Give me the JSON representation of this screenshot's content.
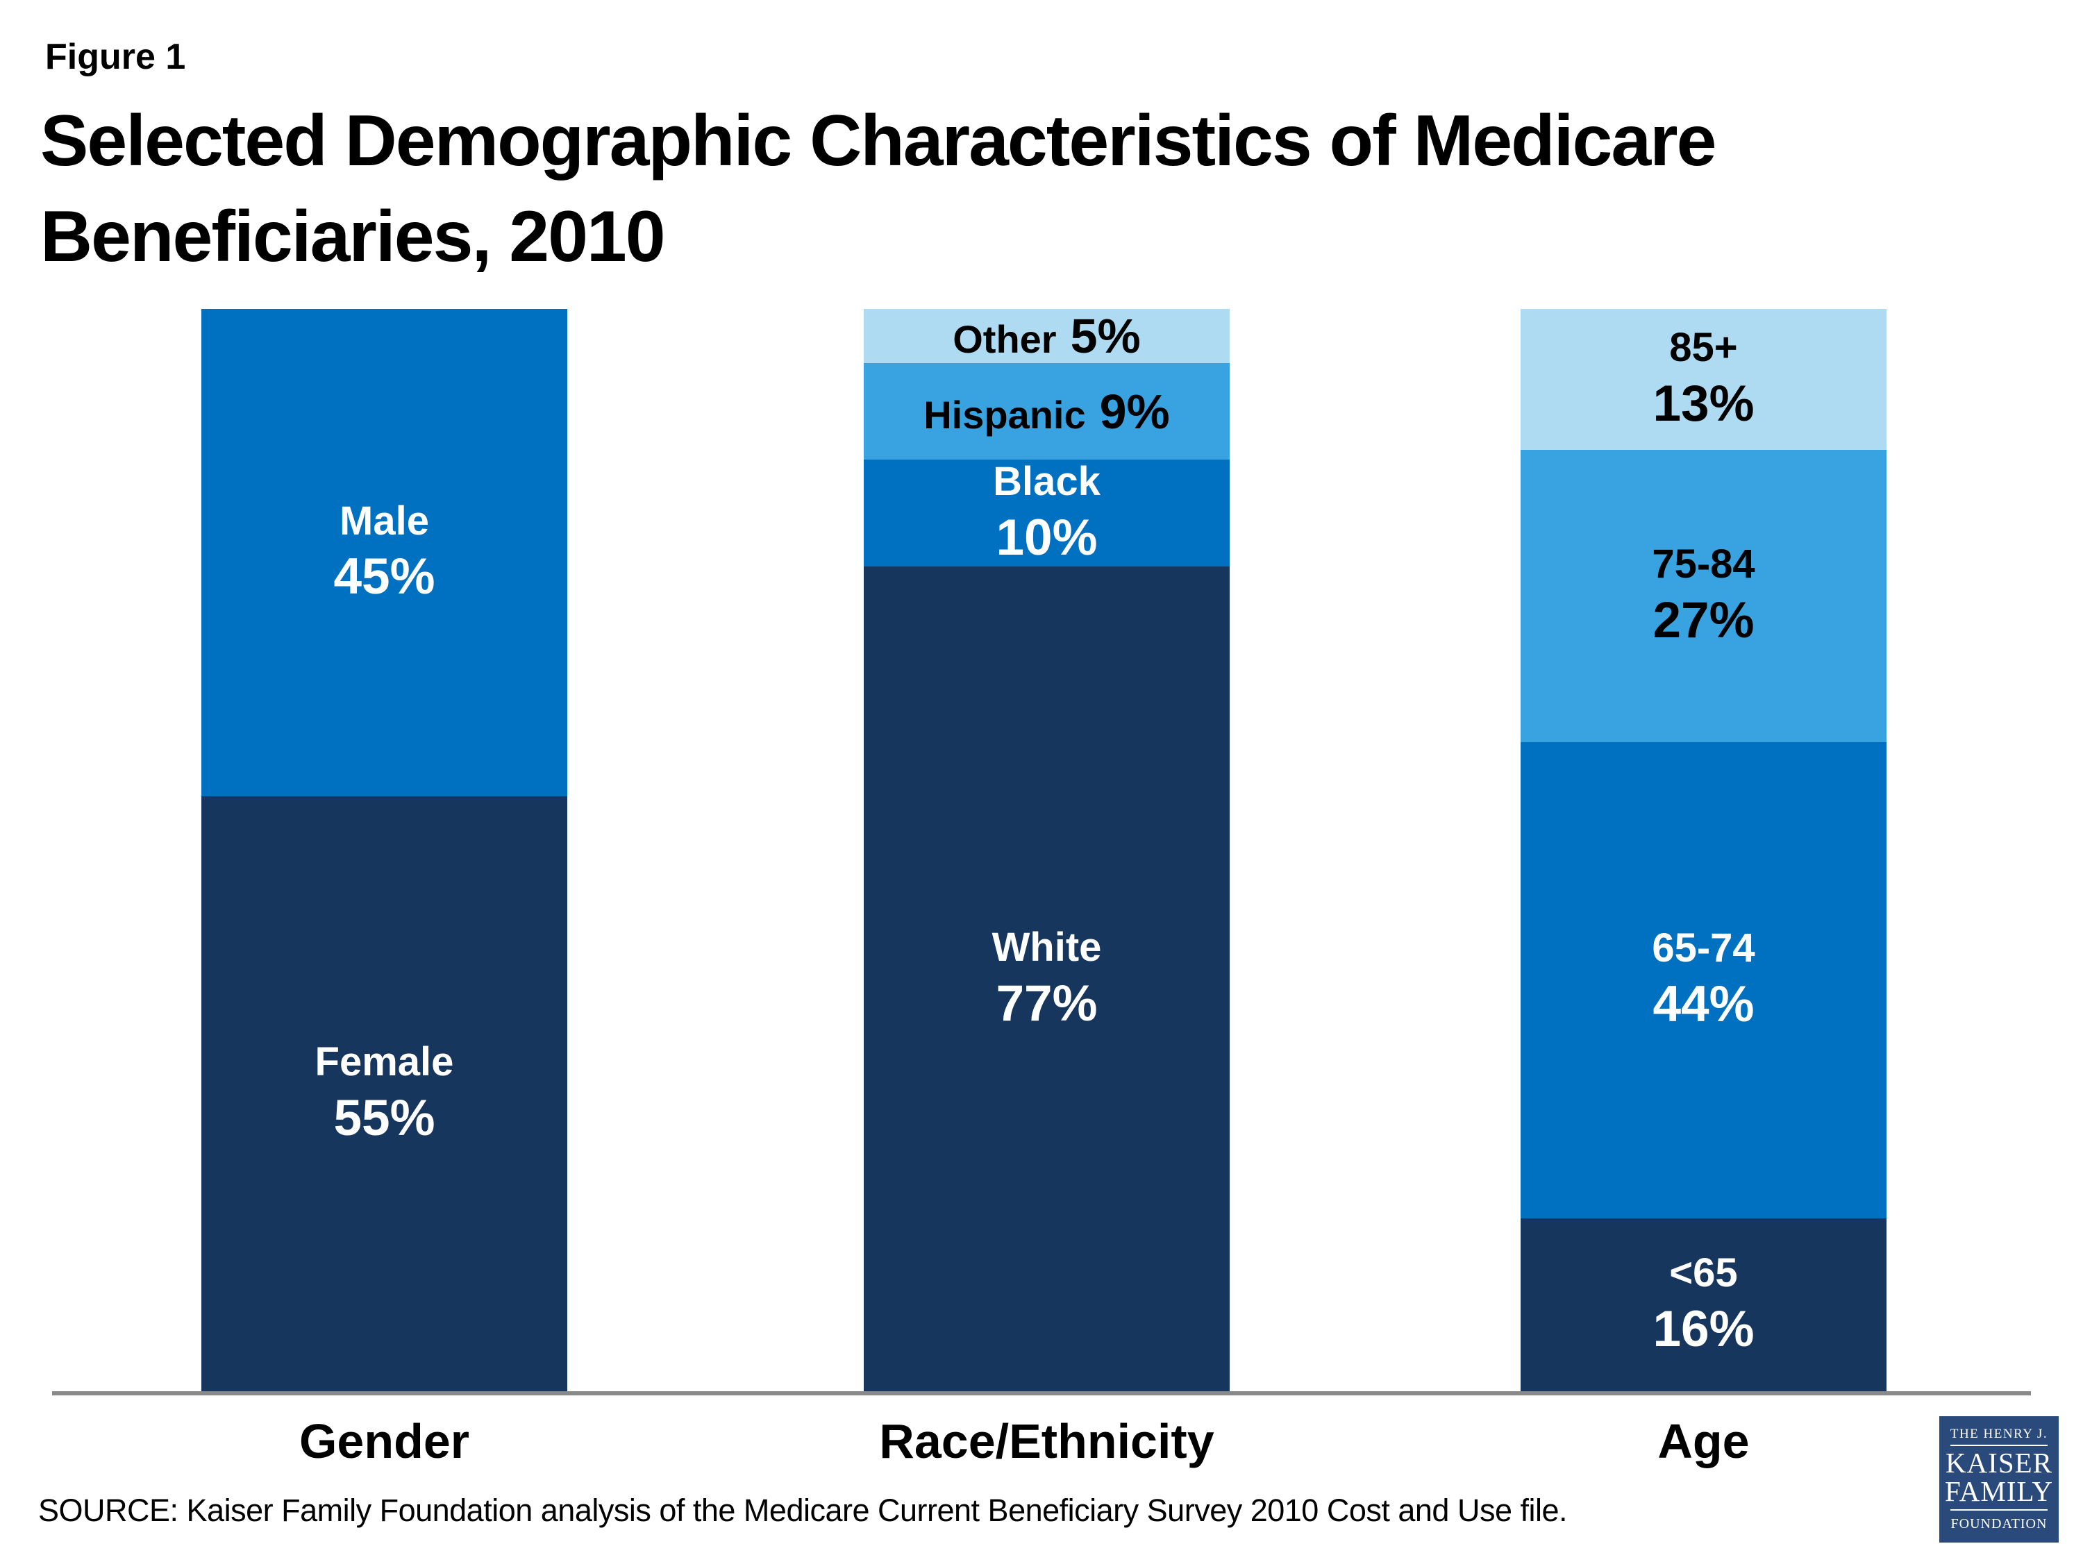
{
  "figure_label": "Figure 1",
  "title_line1": "Selected Demographic Characteristics of Medicare",
  "title_line2": "Beneficiaries, 2010",
  "source": "SOURCE: Kaiser Family Foundation analysis of the Medicare Current Beneficiary Survey 2010 Cost and Use file.",
  "colors": {
    "medium_blue": "#0070c0",
    "dark_navy": "#17365d",
    "sky_blue": "#38a3e0",
    "pale_blue": "#afdbf2",
    "axis_gray": "#898989",
    "logo_navy": "#2a4a7c",
    "white": "#ffffff",
    "black": "#000000"
  },
  "logo": {
    "line1": "THE HENRY J.",
    "line2": "KAISER",
    "line3": "FAMILY",
    "line4": "FOUNDATION"
  },
  "chart_data": {
    "type": "bar",
    "subtype": "stacked-percent-columns",
    "title": "Selected Demographic Characteristics of Medicare Beneficiaries, 2010",
    "xlabel": "",
    "ylabel": "",
    "ylim": [
      0,
      100
    ],
    "value_unit": "%",
    "grid": false,
    "legend": "none (labels inside segments)",
    "categories": [
      "Gender",
      "Race/Ethnicity",
      "Age"
    ],
    "bars": [
      {
        "category": "Gender",
        "segments": [
          {
            "label": "Male",
            "value": 45,
            "pct": "45%",
            "layout": "stacked",
            "color": "#0070c0",
            "text_color": "#ffffff"
          },
          {
            "label": "Female",
            "value": 55,
            "pct": "55%",
            "layout": "stacked",
            "color": "#17365d",
            "text_color": "#ffffff"
          }
        ]
      },
      {
        "category": "Race/Ethnicity",
        "segments": [
          {
            "label": "Other",
            "value": 5,
            "pct": "5%",
            "layout": "inline",
            "color": "#afdbf2",
            "text_color": "#000000"
          },
          {
            "label": "Hispanic",
            "value": 9,
            "pct": "9%",
            "layout": "inline",
            "color": "#38a3e0",
            "text_color": "#000000"
          },
          {
            "label": "Black",
            "value": 10,
            "pct": "10%",
            "layout": "stacked",
            "color": "#0070c0",
            "text_color": "#ffffff"
          },
          {
            "label": "White",
            "value": 77,
            "pct": "77%",
            "layout": "stacked",
            "color": "#17365d",
            "text_color": "#ffffff"
          }
        ]
      },
      {
        "category": "Age",
        "segments": [
          {
            "label": "85+",
            "value": 13,
            "pct": "13%",
            "layout": "stacked",
            "color": "#afdbf2",
            "text_color": "#000000"
          },
          {
            "label": "75-84",
            "value": 27,
            "pct": "27%",
            "layout": "stacked",
            "color": "#38a3e0",
            "text_color": "#000000"
          },
          {
            "label": "65-74",
            "value": 44,
            "pct": "44%",
            "layout": "stacked",
            "color": "#0070c0",
            "text_color": "#ffffff"
          },
          {
            "label": "<65",
            "value": 16,
            "pct": "16%",
            "layout": "stacked",
            "color": "#17365d",
            "text_color": "#ffffff"
          }
        ]
      }
    ]
  }
}
